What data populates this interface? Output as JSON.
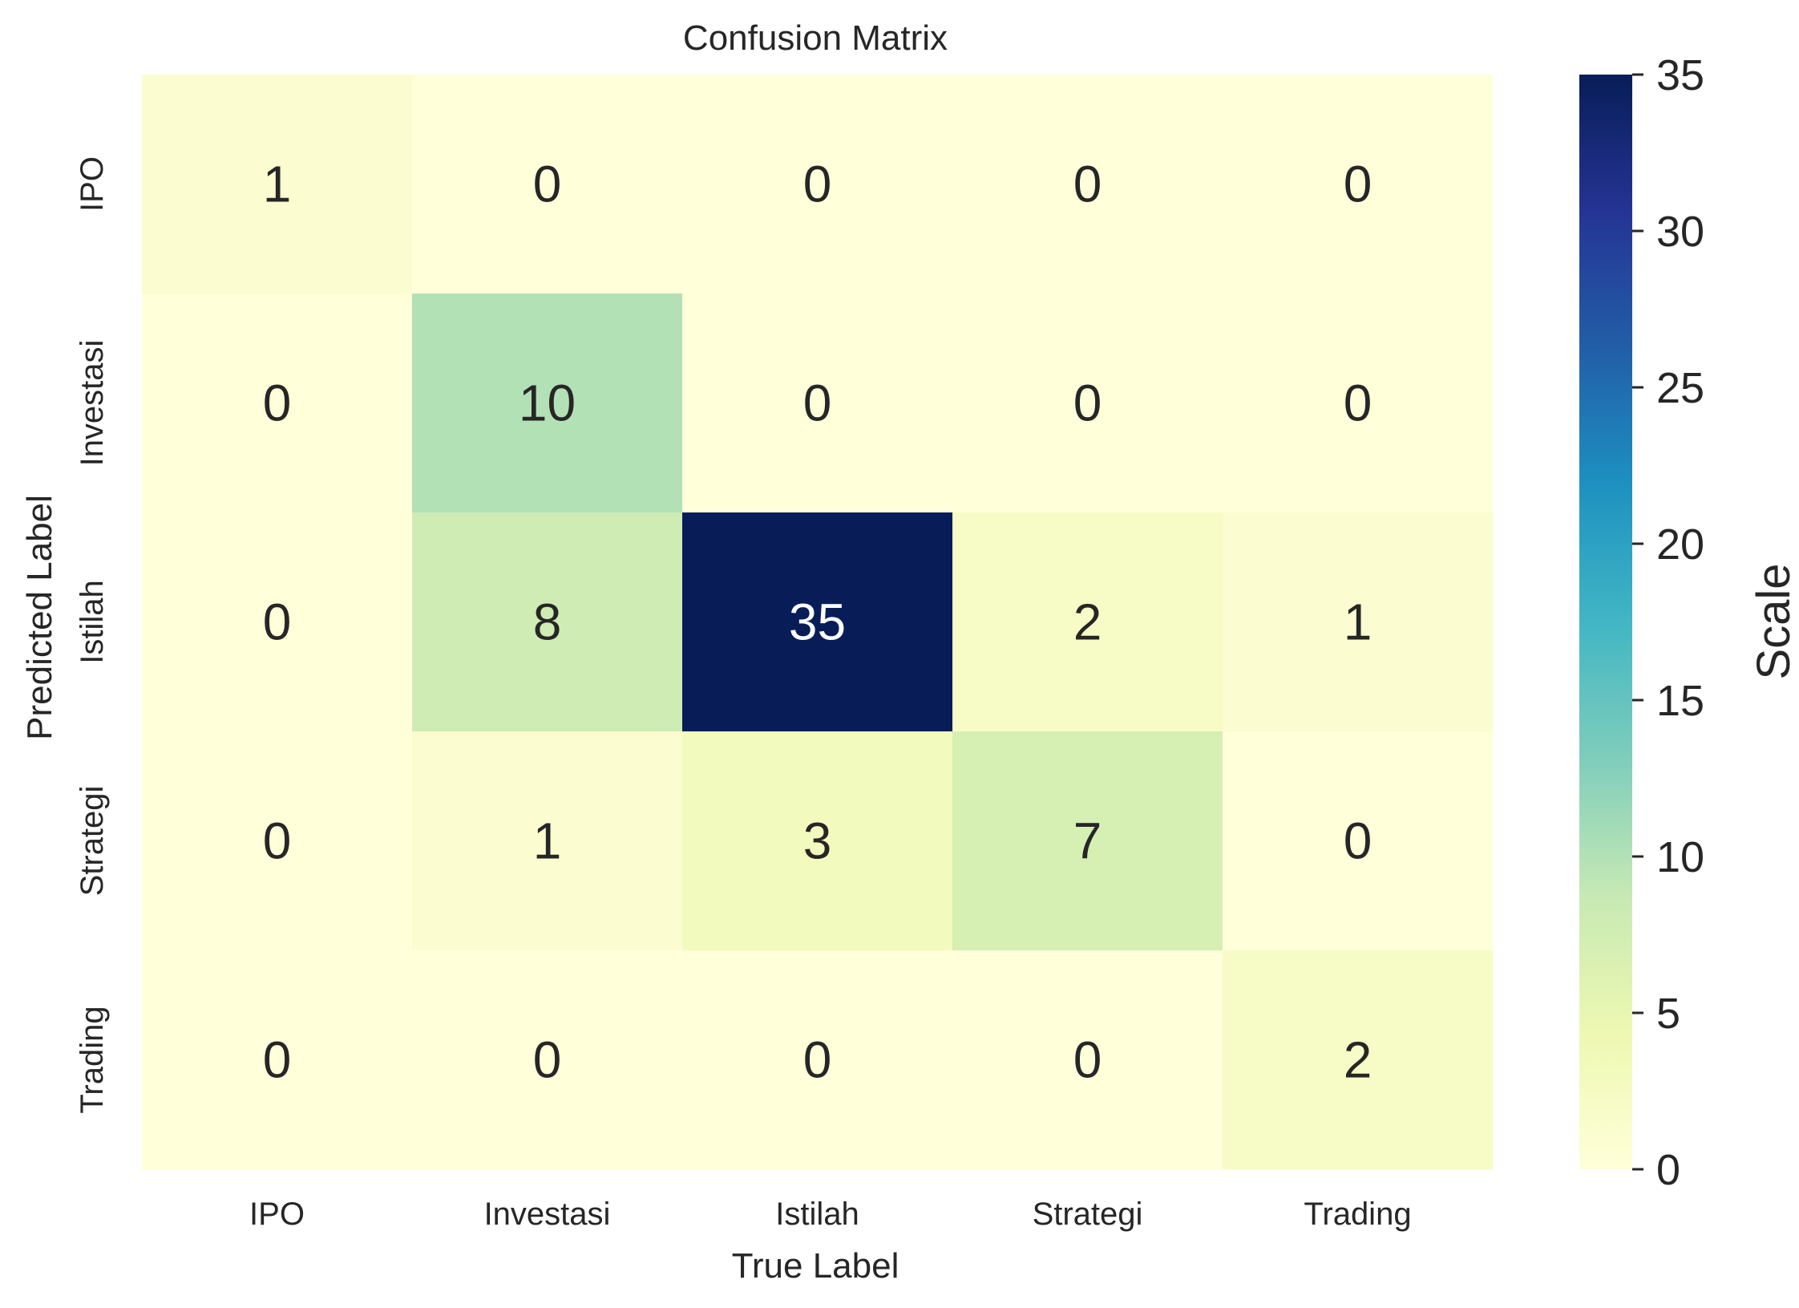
{
  "chart_data": {
    "type": "heatmap",
    "title": "Confusion Matrix",
    "xlabel": "True Label",
    "ylabel": "Predicted Label",
    "x_categories": [
      "IPO",
      "Investasi",
      "Istilah",
      "Strategi",
      "Trading"
    ],
    "y_categories": [
      "IPO",
      "Investasi",
      "Istilah",
      "Strategi",
      "Trading"
    ],
    "matrix": [
      [
        1,
        0,
        0,
        0,
        0
      ],
      [
        0,
        10,
        0,
        0,
        0
      ],
      [
        0,
        8,
        35,
        2,
        1
      ],
      [
        0,
        1,
        3,
        7,
        0
      ],
      [
        0,
        0,
        0,
        0,
        2
      ]
    ],
    "colormap": "YlGnBu",
    "colorbar": {
      "label": "Scale",
      "range": [
        0,
        35
      ],
      "ticks": [
        "0",
        "5",
        "10",
        "15",
        "20",
        "25",
        "30",
        "35"
      ]
    },
    "grid": false
  }
}
